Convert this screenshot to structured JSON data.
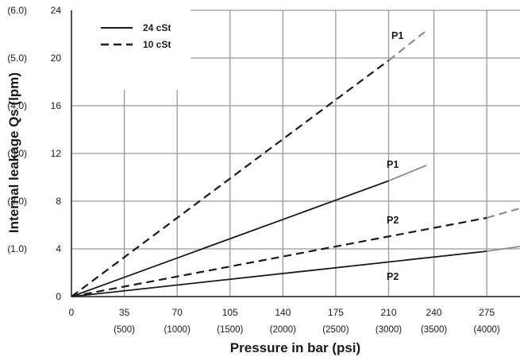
{
  "chart_data": {
    "type": "line",
    "xlabel": "Pressure in bar (psi)",
    "ylabel": "Internal leakage Qs (lpm)",
    "xlim": [
      0,
      297
    ],
    "ylim": [
      0,
      24
    ],
    "x_ticks": [
      {
        "value": 0,
        "label": "0",
        "sub": ""
      },
      {
        "value": 35,
        "label": "35",
        "sub": "(500)"
      },
      {
        "value": 70,
        "label": "70",
        "sub": "(1000)"
      },
      {
        "value": 105,
        "label": "105",
        "sub": "(1500)"
      },
      {
        "value": 140,
        "label": "140",
        "sub": "(2000)"
      },
      {
        "value": 175,
        "label": "175",
        "sub": "(2500)"
      },
      {
        "value": 210,
        "label": "210",
        "sub": "(3000)"
      },
      {
        "value": 240,
        "label": "240",
        "sub": "(3500)"
      },
      {
        "value": 275,
        "label": "275",
        "sub": "(4000)"
      }
    ],
    "y_ticks": [
      {
        "value": 0,
        "label": "0",
        "alt": ""
      },
      {
        "value": 4,
        "label": "4",
        "alt": "(1.0)"
      },
      {
        "value": 8,
        "label": "8",
        "alt": "(2.0)"
      },
      {
        "value": 12,
        "label": "12",
        "alt": "(3.0)"
      },
      {
        "value": 16,
        "label": "16",
        "alt": "(4.0)"
      },
      {
        "value": 20,
        "label": "20",
        "alt": "(5.0)"
      },
      {
        "value": 24,
        "label": "24",
        "alt": "(6.0)"
      }
    ],
    "grid": true,
    "legend": {
      "position": "top-left",
      "entries": [
        "24 cSt",
        "10 cSt"
      ]
    },
    "series": [
      {
        "name": "24 cSt",
        "label": "P1",
        "dash": "solid",
        "x": [
          0,
          210
        ],
        "y": [
          0,
          9.7
        ],
        "ext_x": [
          210,
          235
        ],
        "ext_y": [
          9.7,
          11.0
        ]
      },
      {
        "name": "10 cSt",
        "label": "P1",
        "dash": "dashed",
        "x": [
          0,
          210
        ],
        "y": [
          0,
          19.8
        ],
        "ext_x": [
          210,
          235
        ],
        "ext_y": [
          19.8,
          22.3
        ]
      },
      {
        "name": "10 cSt",
        "label": "P2",
        "dash": "dashed",
        "x": [
          0,
          275
        ],
        "y": [
          0,
          6.6
        ],
        "ext_x": [
          275,
          297
        ],
        "ext_y": [
          6.6,
          7.4
        ]
      },
      {
        "name": "24 cSt",
        "label": "P2",
        "dash": "solid",
        "x": [
          0,
          275
        ],
        "y": [
          0,
          3.8
        ],
        "ext_x": [
          275,
          297
        ],
        "ext_y": [
          3.8,
          4.2
        ]
      }
    ],
    "colors": {
      "line": "#1a1a1a",
      "extension": "#8c8c8c",
      "grid": "#999999"
    }
  }
}
